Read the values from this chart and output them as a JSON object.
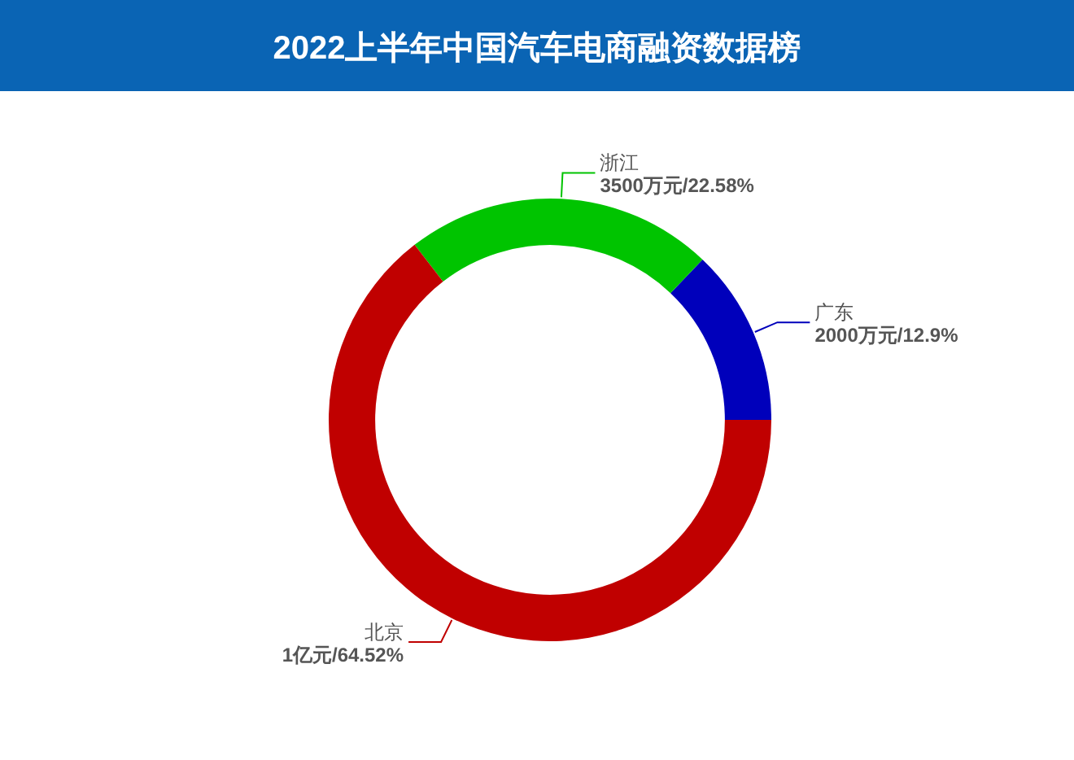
{
  "chart_data": {
    "type": "donut",
    "title": "2022上半年中国汽车电商融资数据榜",
    "categories": [
      "广东",
      "浙江",
      "北京"
    ],
    "values": [
      12.9,
      22.58,
      64.52
    ],
    "colors": [
      "#0000bb",
      "#00c400",
      "#c00000"
    ],
    "value_labels": [
      "2000万元/12.9%",
      "3500万元/22.58%",
      "1亿元/64.52%"
    ]
  }
}
